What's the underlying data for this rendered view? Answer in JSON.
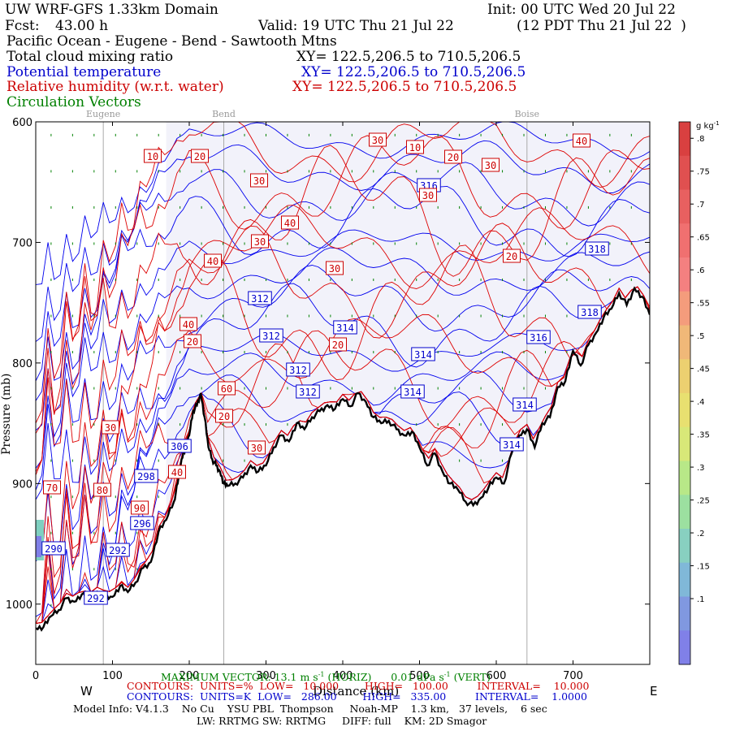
{
  "header": {
    "model_title": "UW WRF-GFS 1.33km Domain",
    "init": "Init: 00 UTC Wed 20 Jul 22",
    "fcst_label": "Fcst:",
    "fcst_value": "43.00 h",
    "valid": "Valid: 19 UTC Thu 21 Jul 22",
    "local_time": "(12 PDT Thu 21 Jul 22  )",
    "region": "Pacific Ocean - Eugene - Bend - Sawtooth Mtns",
    "fields": [
      {
        "name": "Total cloud mixing ratio",
        "xy": "XY= 122.5,206.5 to 710.5,206.5",
        "color": "#000000"
      },
      {
        "name": "Potential temperature",
        "xy": "XY= 122.5,206.5 to 710.5,206.5",
        "color": "#0000cc"
      },
      {
        "name": "Relative humidity (w.r.t. water)",
        "xy": "XY= 122.5,206.5 to 710.5,206.5",
        "color": "#cc0000"
      },
      {
        "name": "Circulation Vectors",
        "xy": "",
        "color": "#008000"
      }
    ]
  },
  "chart_data": {
    "type": "cross-section",
    "xlabel": "Distance (km)",
    "ylabel": "Pressure (mb)",
    "x_ticks": [
      0,
      100,
      200,
      300,
      400,
      500,
      600,
      700
    ],
    "y_ticks": [
      600,
      700,
      800,
      900,
      1000
    ],
    "y_tick_labels": [
      "600",
      "700",
      "800",
      "900",
      "1000"
    ],
    "xlim": [
      0,
      800
    ],
    "ylim": [
      1050,
      600
    ],
    "west_label": "W",
    "east_label": "E",
    "cities": [
      {
        "name": "Eugene",
        "km": 88
      },
      {
        "name": "Bend",
        "km": 245
      },
      {
        "name": "Boise",
        "km": 640
      }
    ],
    "terrain": {
      "km": [
        0,
        10,
        20,
        30,
        40,
        50,
        60,
        70,
        80,
        90,
        100,
        110,
        120,
        130,
        140,
        150,
        160,
        170,
        180,
        185,
        190,
        195,
        200,
        205,
        210,
        215,
        220,
        225,
        230,
        235,
        240,
        245,
        250,
        260,
        270,
        280,
        290,
        300,
        310,
        320,
        330,
        340,
        350,
        360,
        370,
        380,
        390,
        400,
        410,
        420,
        430,
        440,
        450,
        460,
        470,
        480,
        490,
        500,
        510,
        520,
        530,
        540,
        550,
        560,
        570,
        580,
        590,
        600,
        610,
        620,
        630,
        640,
        650,
        660,
        670,
        680,
        690,
        700,
        710,
        720,
        730,
        740,
        750,
        760,
        770,
        780,
        790,
        800
      ],
      "hpa": [
        1020,
        1019,
        1010,
        1005,
        995,
        998,
        992,
        995,
        990,
        993,
        994,
        985,
        990,
        982,
        970,
        965,
        940,
        930,
        915,
        900,
        880,
        870,
        860,
        840,
        835,
        825,
        845,
        870,
        880,
        885,
        890,
        900,
        902,
        900,
        895,
        885,
        890,
        885,
        870,
        860,
        865,
        850,
        855,
        845,
        840,
        835,
        838,
        830,
        836,
        825,
        832,
        845,
        850,
        848,
        855,
        860,
        857,
        870,
        885,
        875,
        890,
        900,
        905,
        915,
        918,
        912,
        903,
        895,
        900,
        875,
        860,
        855,
        870,
        850,
        845,
        820,
        815,
        790,
        802,
        785,
        775,
        762,
        755,
        742,
        752,
        738,
        745,
        760
      ]
    },
    "theta_labels": [
      "312",
      "312",
      "312",
      "312",
      "314",
      "314",
      "314",
      "316",
      "316",
      "318",
      "318",
      "314",
      "314",
      "306",
      "298",
      "296",
      "292",
      "290",
      "292"
    ],
    "rh_labels": [
      "10",
      "20",
      "30",
      "40",
      "30",
      "40",
      "30",
      "10",
      "20",
      "30",
      "40",
      "20",
      "30",
      "20",
      "30",
      "40",
      "60",
      "20",
      "30",
      "70",
      "80",
      "90",
      "20",
      "40",
      "30"
    ],
    "colorbar": {
      "unit": "g kg",
      "unit_sup": "-1",
      "labels": [
        ".8",
        ".75",
        ".7",
        ".65",
        ".6",
        ".55",
        ".5",
        ".45",
        ".4",
        ".35",
        ".3",
        ".25",
        ".2",
        ".15",
        ".1"
      ],
      "values": [
        0.8,
        0.75,
        0.7,
        0.65,
        0.6,
        0.55,
        0.5,
        0.45,
        0.4,
        0.35,
        0.3,
        0.25,
        0.2,
        0.15,
        0.1
      ],
      "colors": [
        "#d94040",
        "#e05050",
        "#e86060",
        "#f07070",
        "#f48080",
        "#f49c7c",
        "#f0b878",
        "#ecd070",
        "#e8e070",
        "#d8e878",
        "#b8e888",
        "#9ce0a0",
        "#88d0c0",
        "#80b8d8",
        "#8098e0",
        "#8080e8"
      ]
    }
  },
  "footer": {
    "max_vector": "MAXIMUM VECTOR: 13.1 m s",
    "max_vector_sup": "-1",
    "max_vector_horiz": "(HORIZ)",
    "max_vector_vert": "0.01 dPa s",
    "max_vector_vert_sup": "-1",
    "max_vector_vert_tag": "(VERT)",
    "rh_line": "CONTOURS:  UNITS=%  LOW=   10.000        HIGH=   100.00         INTERVAL=    10.000",
    "theta_line": "CONTOURS:  UNITS=K  LOW=   286.00        HIGH=   335.00         INTERVAL=    1.0000",
    "model_info": "Model Info: V4.1.3    No Cu    YSU PBL  Thompson     Noah-MP    1.3 km,   37 levels,    6 sec",
    "model_info2": "LW: RRTMG SW: RRTMG     DIFF: full    KM: 2D Smagor"
  }
}
